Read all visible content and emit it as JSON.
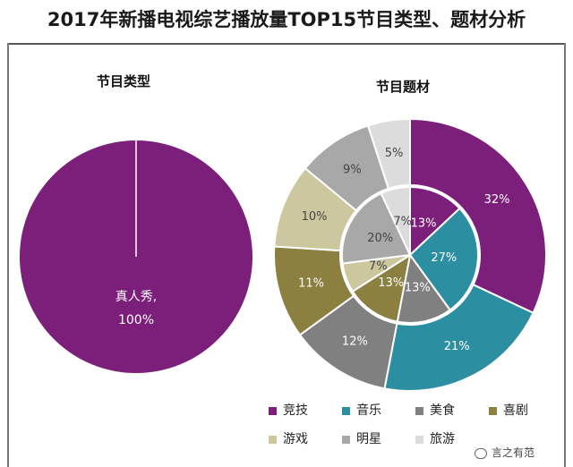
{
  "title": "2017年新播电视综艺播放量TOP15节目类型、题材分析",
  "footer_text": "言之有范",
  "chart_data": [
    {
      "type": "pie",
      "title": "节目类型",
      "slices": [
        {
          "label": "真人秀,",
          "value": 100,
          "display": "100%",
          "color": "#7b1f7a"
        }
      ]
    },
    {
      "type": "pie",
      "title": "节目题材",
      "variant": "nested-donut",
      "legend": [
        {
          "label": "竞技",
          "color": "#7b1f7a"
        },
        {
          "label": "音乐",
          "color": "#2c8ea1"
        },
        {
          "label": "美食",
          "color": "#808080"
        },
        {
          "label": "喜剧",
          "color": "#8c8040"
        },
        {
          "label": "游戏",
          "color": "#cdc79f"
        },
        {
          "label": "明星",
          "color": "#a8a8a8"
        },
        {
          "label": "旅游",
          "color": "#dcdcdc"
        }
      ],
      "outer_ring": [
        {
          "label": "竞技",
          "value": 32,
          "display": "32%"
        },
        {
          "label": "音乐",
          "value": 21,
          "display": "21%"
        },
        {
          "label": "美食",
          "value": 12,
          "display": "12%"
        },
        {
          "label": "喜剧",
          "value": 11,
          "display": "11%"
        },
        {
          "label": "游戏",
          "value": 10,
          "display": "10%"
        },
        {
          "label": "明星",
          "value": 9,
          "display": "9%"
        },
        {
          "label": "旅游",
          "value": 5,
          "display": "5%"
        }
      ],
      "inner_ring": [
        {
          "label": "竞技",
          "value": 13,
          "display": "13%"
        },
        {
          "label": "音乐",
          "value": 27,
          "display": "27%"
        },
        {
          "label": "美食",
          "value": 13,
          "display": "13%"
        },
        {
          "label": "喜剧",
          "value": 13,
          "display": "13%"
        },
        {
          "label": "游戏",
          "value": 7,
          "display": "7%"
        },
        {
          "label": "明星",
          "value": 20,
          "display": "20%"
        },
        {
          "label": "旅游",
          "value": 7,
          "display": "7%"
        }
      ]
    }
  ]
}
